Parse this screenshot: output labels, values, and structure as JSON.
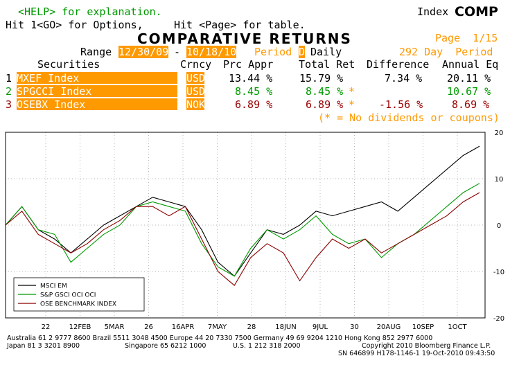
{
  "header": {
    "help_line": "<HELP> for explanation.",
    "options_line": "Hit 1<GO> for Options,",
    "page_line": "Hit <Page> for table.",
    "index_label": "Index",
    "index_name": "COMP",
    "title": "COMPARATIVE RETURNS",
    "page": "Page  1/15",
    "range_label": "Range",
    "range_start": "12/30/09",
    "range_dash": "-",
    "range_end": "10/18/10",
    "period_label": "Period",
    "period_code": "D",
    "period_value": "Daily",
    "day_period": "292 Day  Period"
  },
  "table": {
    "headers": {
      "securities": "Securities",
      "crncy": "Crncy",
      "prc_appr": "Prc Appr",
      "total_ret": "Total Ret",
      "difference": "Difference",
      "annual_eq": "Annual Eq"
    },
    "rows": [
      {
        "num": "1",
        "name": "MXEF Index",
        "crncy": "USD",
        "prc": "13.44 %",
        "total": "15.79 %",
        "mark": "",
        "diff": "7.34 %",
        "annual": "20.11 %"
      },
      {
        "num": "2",
        "name": "SPGCCI Index",
        "crncy": "USD",
        "prc": "8.45 %",
        "total": "8.45 %",
        "mark": "*",
        "diff": "",
        "annual": "10.67 %"
      },
      {
        "num": "3",
        "name": "OSEBX Index",
        "crncy": "NOK",
        "prc": "6.89 %",
        "total": "6.89 %",
        "mark": "*",
        "diff": "-1.56 %",
        "annual": "8.69 %"
      }
    ],
    "note": "(* = No dividends or coupons)"
  },
  "colors": {
    "msci": "#000000",
    "spgsci": "#009900",
    "osebx": "#8b0000",
    "orange": "#ff9900"
  },
  "chart_data": {
    "type": "line",
    "ylim": [
      -20,
      20
    ],
    "y_ticks": [
      "20",
      "10",
      "0",
      "-10",
      "-20"
    ],
    "x_tick_labels": [
      "22",
      "12FEB",
      "5MAR",
      "26",
      "16APR",
      "7MAY",
      "28",
      "18JUN",
      "9JUL",
      "30",
      "20AUG",
      "10SEP",
      "1OCT"
    ],
    "legend": [
      "MSCI EM",
      "S&P GSCI OCI OCI",
      "OSE BENCHMARK INDEX"
    ],
    "legend_position": "bottom-left",
    "series": [
      {
        "name": "MSCI EM",
        "values": [
          0,
          4,
          -1,
          -3,
          -6,
          -3,
          0,
          2,
          4,
          6,
          5,
          4,
          -1,
          -8,
          -11,
          -6,
          -1,
          -2,
          0,
          3,
          2,
          3,
          4,
          5,
          3,
          6,
          9,
          12,
          15,
          17
        ]
      },
      {
        "name": "S&P GSCI OCI OCI",
        "values": [
          0,
          4,
          -1,
          -2,
          -8,
          -5,
          -2,
          0,
          4,
          5,
          4,
          3,
          -4,
          -9,
          -11,
          -5,
          -1,
          -3,
          -1,
          2,
          -2,
          -4,
          -3,
          -7,
          -4,
          -2,
          1,
          4,
          7,
          9
        ]
      },
      {
        "name": "OSE BENCHMARK INDEX",
        "values": [
          0,
          3,
          -2,
          -4,
          -6,
          -4,
          -1,
          1,
          4,
          4,
          2,
          4,
          -3,
          -10,
          -13,
          -7,
          -4,
          -6,
          -12,
          -7,
          -3,
          -5,
          -3,
          -6,
          -4,
          -2,
          0,
          2,
          5,
          7
        ]
      }
    ]
  },
  "footer": {
    "line1": "Australia 61 2 9777 8600 Brazil 5511 3048 4500 Europe 44 20 7330 7500 Germany 49 69 9204 1210 Hong Kong 852 2977 6000",
    "line2_left": "Japan 81 3 3201 8900",
    "line2_mid1": "Singapore 65 6212 1000",
    "line2_mid2": "U.S. 1 212 318 2000",
    "line2_right": "Copyright 2010 Bloomberg Finance L.P.",
    "line3": "SN 646899 H178-1146-1 19-Oct-2010 09:43:50"
  }
}
